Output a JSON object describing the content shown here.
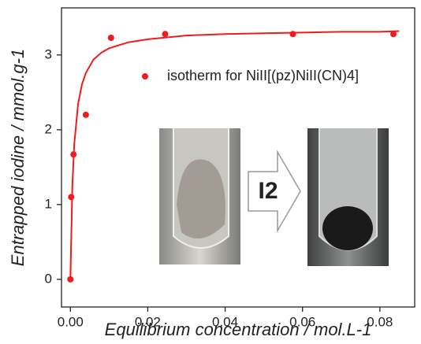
{
  "chart_data": {
    "type": "scatter",
    "x_label": "Equilibrium concentration / mol.L-1",
    "y_label": "Entrapped iodine / mmol.g-1",
    "annotations": [
      "I2"
    ],
    "series": [
      {
        "name": "isotherm for NiII[(pz)NiII(CN)4]",
        "color": "#ee1c1c",
        "mode": "markers",
        "x": [
          0,
          0.0002,
          0.0008,
          0.004,
          0.0105,
          0.0245,
          0.0575,
          0.0835
        ],
        "values": [
          0,
          1.1,
          1.67,
          2.2,
          3.23,
          3.28,
          3.28,
          3.28
        ]
      },
      {
        "color": "#ee1c1c",
        "mode": "line",
        "x": [
          0,
          0.0005,
          0.001,
          0.002,
          0.003,
          0.004,
          0.006,
          0.008,
          0.01,
          0.015,
          0.02,
          0.03,
          0.04,
          0.05,
          0.06,
          0.07,
          0.08,
          0.085
        ],
        "values": [
          0,
          1.24,
          1.81,
          2.35,
          2.61,
          2.76,
          2.94,
          3.03,
          3.09,
          3.17,
          3.21,
          3.26,
          3.28,
          3.29,
          3.3,
          3.31,
          3.31,
          3.32
        ]
      }
    ],
    "xlim": [
      -0.0023,
      0.089
    ],
    "ylim": [
      -0.37,
      3.63
    ],
    "xticks": [
      {
        "value": 0,
        "label": "0.00"
      },
      {
        "value": 0.02,
        "label": "0.02"
      },
      {
        "value": 0.04,
        "label": "0.04"
      },
      {
        "value": 0.06,
        "label": "0.06"
      },
      {
        "value": 0.08,
        "label": "0.08"
      }
    ],
    "yticks": [
      0,
      1,
      2,
      3
    ]
  }
}
